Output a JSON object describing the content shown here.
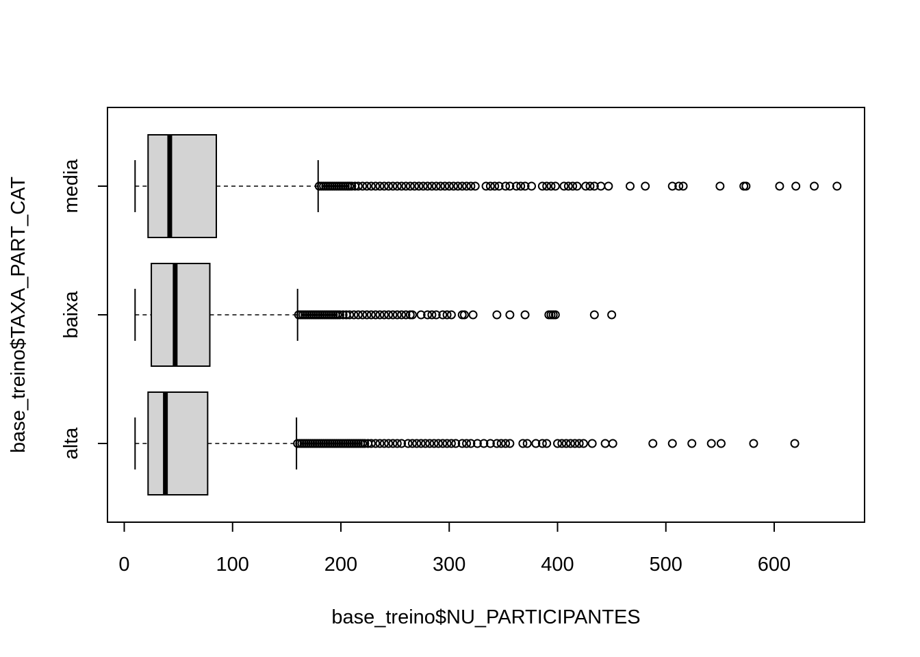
{
  "chart_data": {
    "type": "boxplot",
    "orientation": "horizontal",
    "title": "",
    "xlabel": "base_treino$NU_PARTICIPANTES",
    "ylabel": "base_treino$TAXA_PART_CAT",
    "xlim": [
      -8,
      692
    ],
    "x_ticks": [
      0,
      100,
      200,
      300,
      400,
      500,
      600
    ],
    "x_tick_labels": [
      "0",
      "100",
      "200",
      "300",
      "400",
      "500",
      "600"
    ],
    "categories": [
      "alta",
      "baixa",
      "media"
    ],
    "box_fill": "#d3d3d3",
    "outlier_style": "open-circle",
    "groups": [
      {
        "name": "alta",
        "whisker_low": 10,
        "q1": 22,
        "median": 38,
        "q3": 77,
        "whisker_high": 159,
        "outliers": [
          160,
          162,
          164,
          166,
          168,
          170,
          172,
          174,
          176,
          178,
          180,
          182,
          184,
          186,
          188,
          190,
          192,
          194,
          196,
          198,
          200,
          202,
          204,
          206,
          208,
          210,
          212,
          214,
          216,
          218,
          220,
          222,
          225,
          228,
          232,
          236,
          240,
          244,
          248,
          252,
          256,
          262,
          266,
          270,
          274,
          278,
          282,
          286,
          290,
          294,
          298,
          302,
          306,
          312,
          316,
          320,
          326,
          332,
          338,
          344,
          348,
          352,
          356,
          368,
          372,
          380,
          386,
          390,
          400,
          404,
          408,
          412,
          416,
          420,
          424,
          432,
          444,
          451,
          488,
          506,
          524,
          542,
          551,
          581,
          619
        ]
      },
      {
        "name": "baixa",
        "whisker_low": 10,
        "q1": 25,
        "median": 47,
        "q3": 79,
        "whisker_high": 160,
        "outliers": [
          161,
          163,
          165,
          167,
          169,
          171,
          173,
          175,
          177,
          179,
          181,
          183,
          185,
          187,
          189,
          191,
          193,
          195,
          197,
          199,
          202,
          205,
          208,
          212,
          216,
          220,
          224,
          228,
          232,
          236,
          240,
          244,
          248,
          252,
          256,
          260,
          264,
          266,
          274,
          280,
          284,
          288,
          294,
          298,
          302,
          312,
          314,
          322,
          344,
          356,
          370,
          392,
          394,
          396,
          398,
          434,
          450
        ]
      },
      {
        "name": "media",
        "whisker_low": 10,
        "q1": 22,
        "median": 42,
        "q3": 85,
        "whisker_high": 179,
        "outliers": [
          180,
          182,
          184,
          186,
          188,
          190,
          192,
          194,
          196,
          198,
          200,
          202,
          204,
          206,
          208,
          210,
          213,
          216,
          220,
          224,
          228,
          232,
          236,
          240,
          244,
          248,
          252,
          256,
          260,
          264,
          268,
          272,
          276,
          280,
          284,
          288,
          292,
          296,
          300,
          304,
          308,
          312,
          316,
          320,
          324,
          334,
          338,
          342,
          346,
          352,
          356,
          362,
          366,
          370,
          376,
          386,
          390,
          394,
          398,
          406,
          410,
          414,
          418,
          426,
          430,
          434,
          440,
          447,
          467,
          481,
          506,
          512,
          516,
          550,
          572,
          574,
          605,
          620,
          637,
          658
        ]
      }
    ]
  }
}
